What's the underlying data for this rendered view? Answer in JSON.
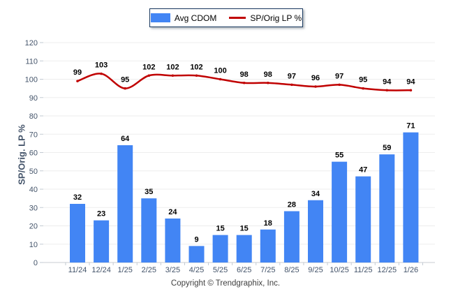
{
  "legend": {
    "items": [
      {
        "label": "Avg CDOM",
        "type": "bar",
        "color": "#4285F4"
      },
      {
        "label": "SP/Orig LP %",
        "type": "line",
        "color": "#C00000"
      }
    ]
  },
  "footer": {
    "text": "Copyright © Trendgraphix, Inc."
  },
  "colors": {
    "bar": "#4285F4",
    "line": "#C00000",
    "grid": "#EDEDED",
    "axis_line": "#C9CDD2",
    "tick": "#C2CAD2",
    "axis_text": "#44546A",
    "value_label": "#000000",
    "legend_border": "#17375E"
  },
  "chart_data": {
    "type": "combo",
    "categories": [
      "11/24",
      "12/24",
      "1/25",
      "2/25",
      "3/25",
      "4/25",
      "5/25",
      "6/25",
      "7/25",
      "8/25",
      "9/25",
      "10/25",
      "11/25",
      "12/25",
      "1/26"
    ],
    "series": [
      {
        "name": "Avg CDOM",
        "type": "bar",
        "color": "#4285F4",
        "values": [
          32,
          23,
          64,
          35,
          24,
          9,
          15,
          15,
          18,
          28,
          34,
          55,
          47,
          59,
          71
        ]
      },
      {
        "name": "SP/Orig LP %",
        "type": "line",
        "color": "#C00000",
        "values": [
          99,
          103,
          95,
          102,
          102,
          102,
          100,
          98,
          98,
          97,
          96,
          97,
          95,
          94,
          94
        ]
      }
    ],
    "title": "",
    "xlabel": "",
    "ylabel": "SP/Orig. LP %",
    "ylim": [
      0,
      120
    ],
    "ytick_step": 10,
    "yticks": [
      0,
      10,
      20,
      30,
      40,
      50,
      60,
      70,
      80,
      90,
      100,
      110,
      120
    ],
    "grid": true,
    "legend_position": "top",
    "value_labels": true
  }
}
